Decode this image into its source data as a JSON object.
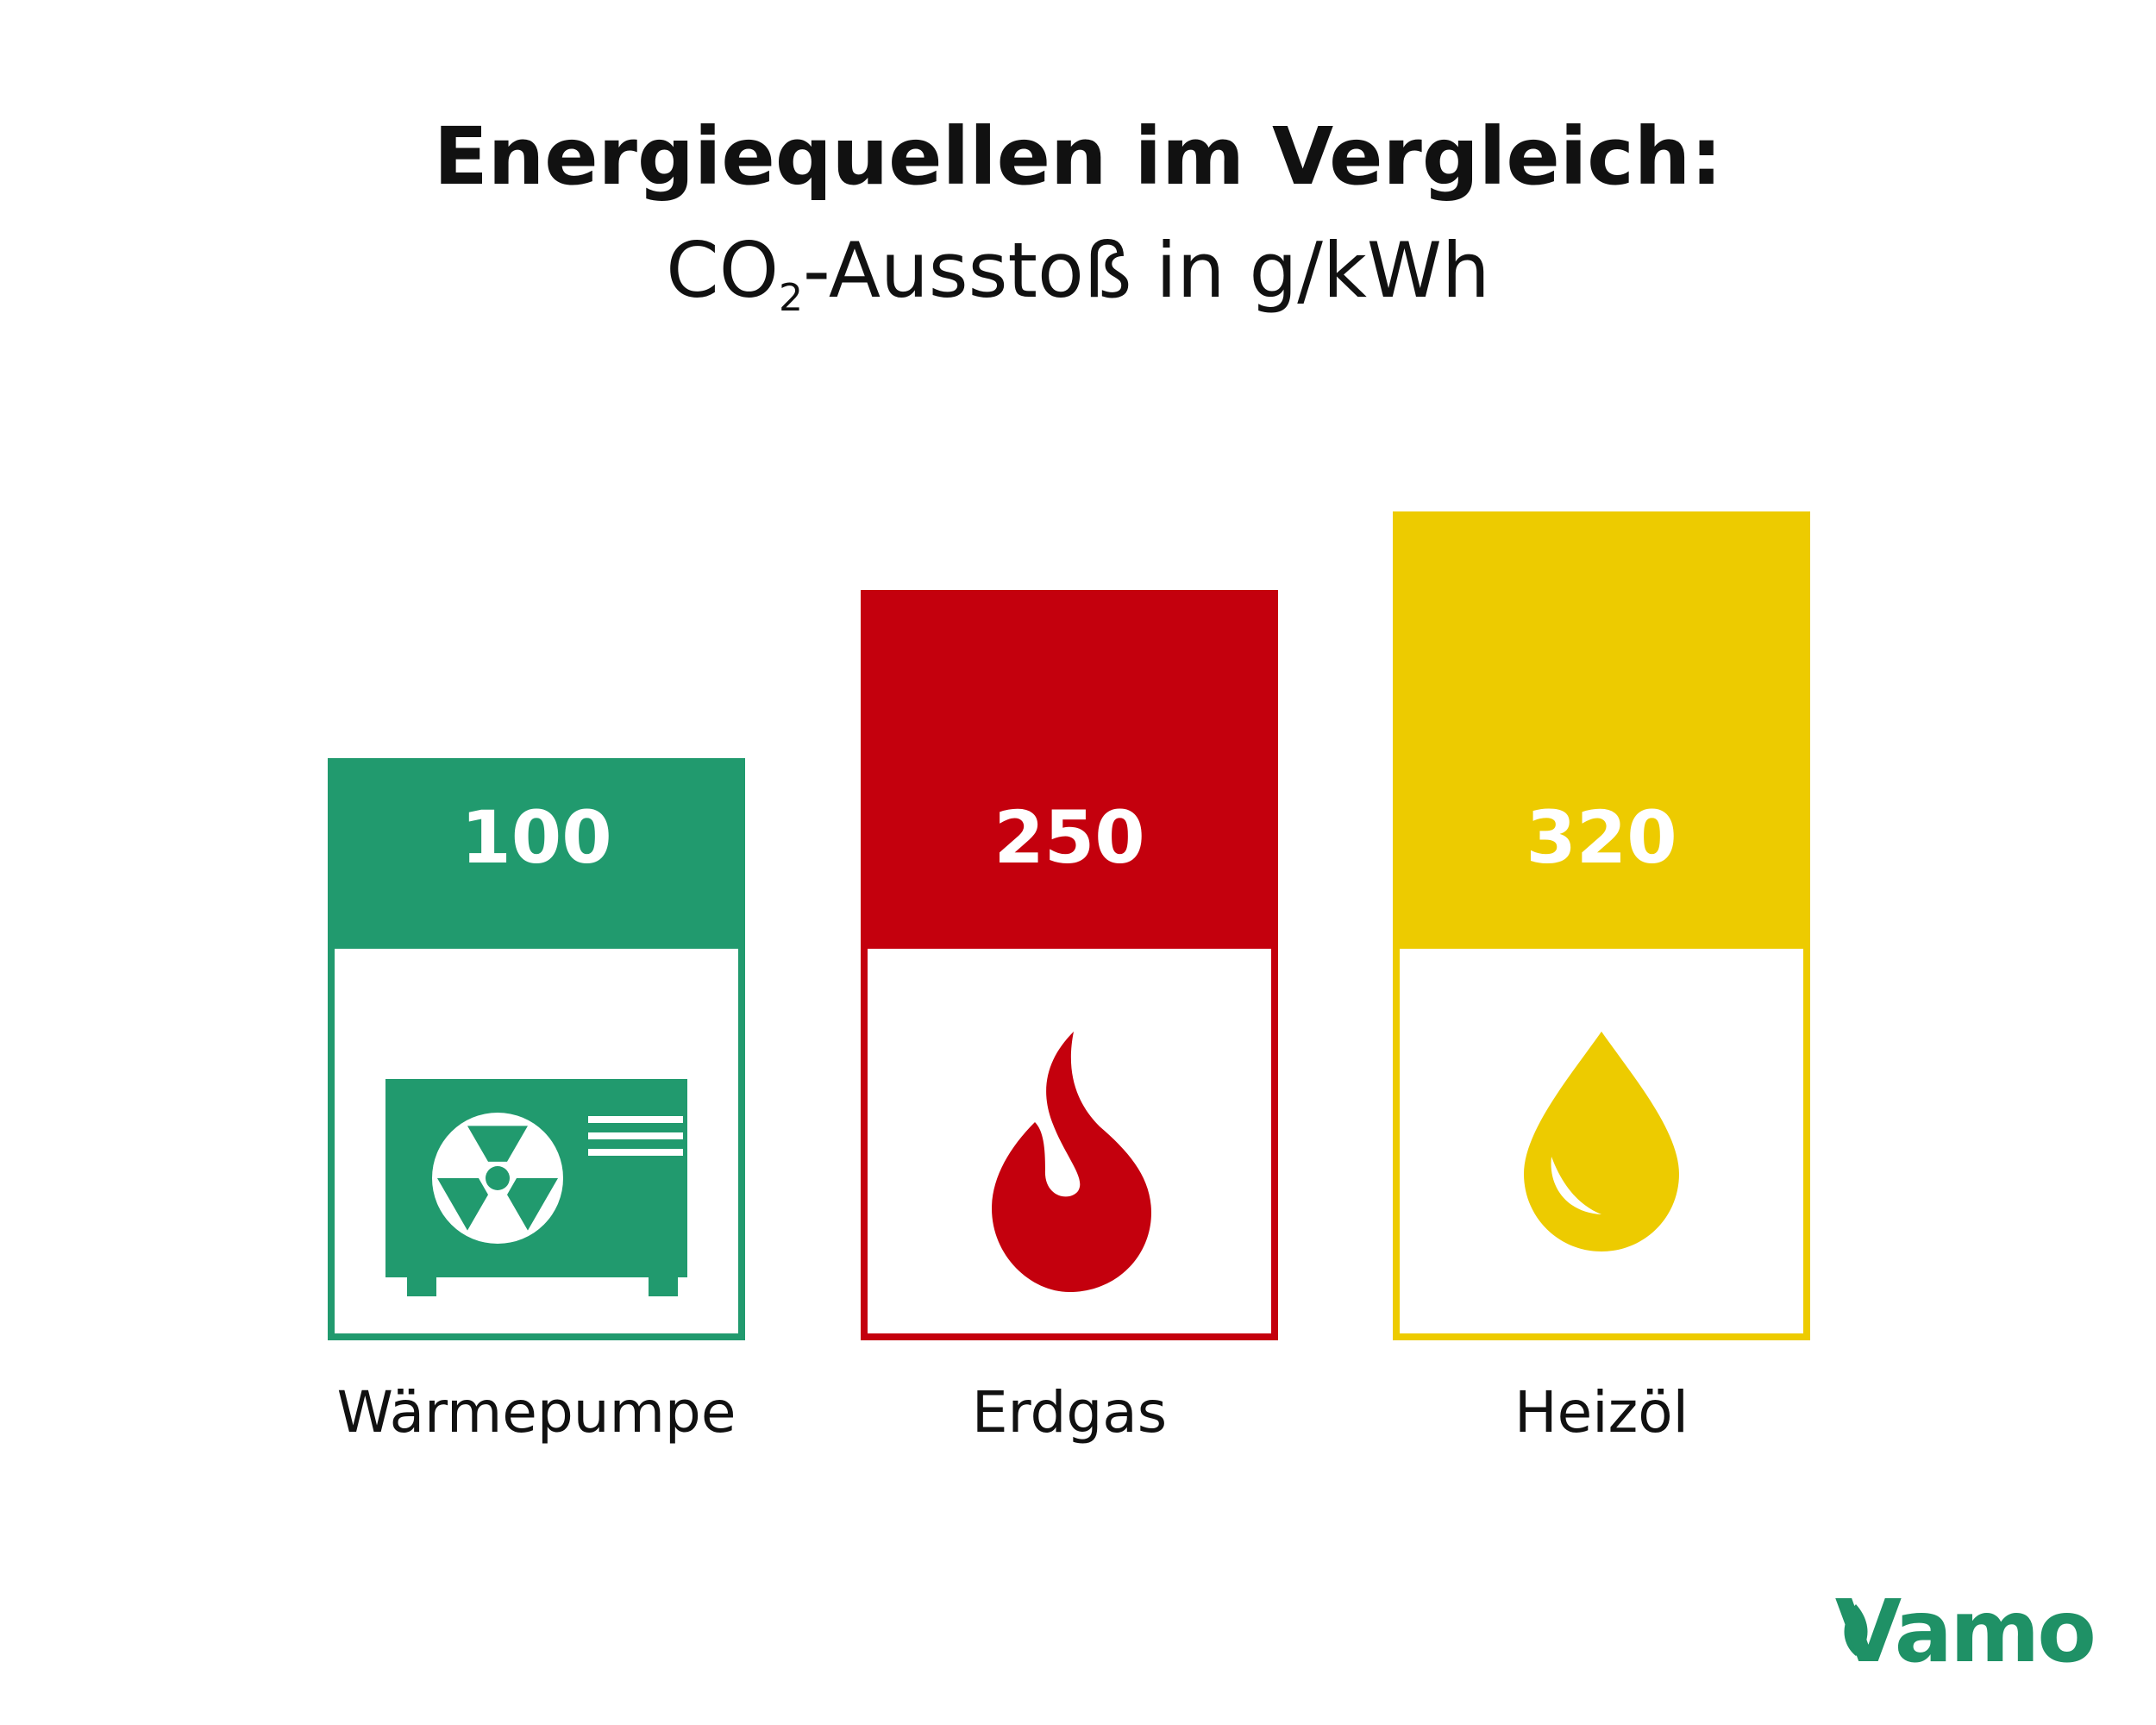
{
  "title": "Energiequellen im Vergleich:",
  "subtitle": {
    "prefix": "CO",
    "subscript": "2",
    "suffix": "-Ausstoß in g/kWh"
  },
  "chart_data": {
    "type": "bar",
    "categories": [
      "Wärmepumpe",
      "Erdgas",
      "Heizöl"
    ],
    "values": [
      100,
      250,
      320
    ],
    "value_labels": [
      "100",
      "250",
      "320"
    ],
    "title": "Energiequellen im Vergleich:",
    "subtitle": "CO2-Ausstoß in g/kWh",
    "xlabel": "",
    "ylabel": "",
    "grid": false,
    "legend": "none",
    "colors": [
      "#219a6e",
      "#c4000d",
      "#edcb00"
    ],
    "icons": [
      "heat-pump-icon",
      "flame-icon",
      "oil-drop-icon"
    ]
  },
  "logo": {
    "text": "Vamo",
    "color": "#1f9166"
  }
}
